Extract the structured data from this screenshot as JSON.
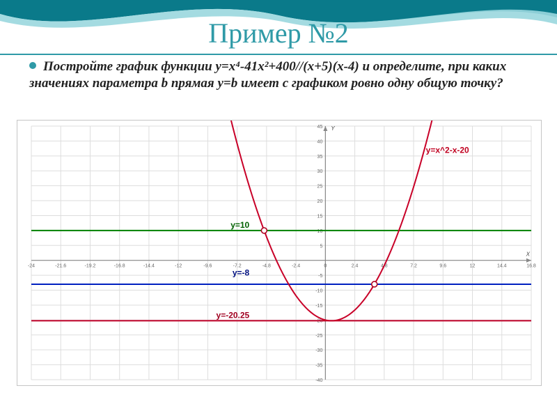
{
  "title": "Пример №2",
  "problem_html": "Постройте график функции y=x⁴-41x²+400//(x+5)(x-4) и определите, при каких значениях параметра b прямая y=b имеет с графиком ровно одну общую точку?",
  "wave": {
    "color_dark": "#0a7a8a",
    "color_light": "#9ad7de"
  },
  "chart": {
    "type": "line",
    "background_color": "#ffffff",
    "grid_color": "#dddddd",
    "axis_color": "#888888",
    "xlim": [
      -24,
      16.8
    ],
    "ylim": [
      -40,
      45
    ],
    "xtick_step": 2.4,
    "ytick_step": 5,
    "x_axis_title": "X",
    "y_axis_title": "Y",
    "axis_title_fontsize": 8,
    "tick_fontsize": 7,
    "label_fontsize": 12,
    "parabola": {
      "label": "y=x^2-x-20",
      "label_color": "#c00020",
      "line_color": "#c80028",
      "line_width": 2,
      "a": 1,
      "b": -1,
      "c": -20
    },
    "h_lines": [
      {
        "y": 10,
        "label": "y=10",
        "label_color": "#006000",
        "line_color": "#008000",
        "line_width": 2
      },
      {
        "y": -8,
        "label": "y=-8",
        "label_color": "#001080",
        "line_color": "#0020c0",
        "line_width": 2
      },
      {
        "y": -20.25,
        "label": "y=-20.25",
        "label_color": "#a00020",
        "line_color": "#c00028",
        "line_width": 2
      }
    ],
    "holes": [
      {
        "x": -5,
        "y_line": "y10",
        "color": "#c00028"
      },
      {
        "x": 4,
        "y_line": "y-8",
        "color": "#c00028"
      }
    ]
  }
}
